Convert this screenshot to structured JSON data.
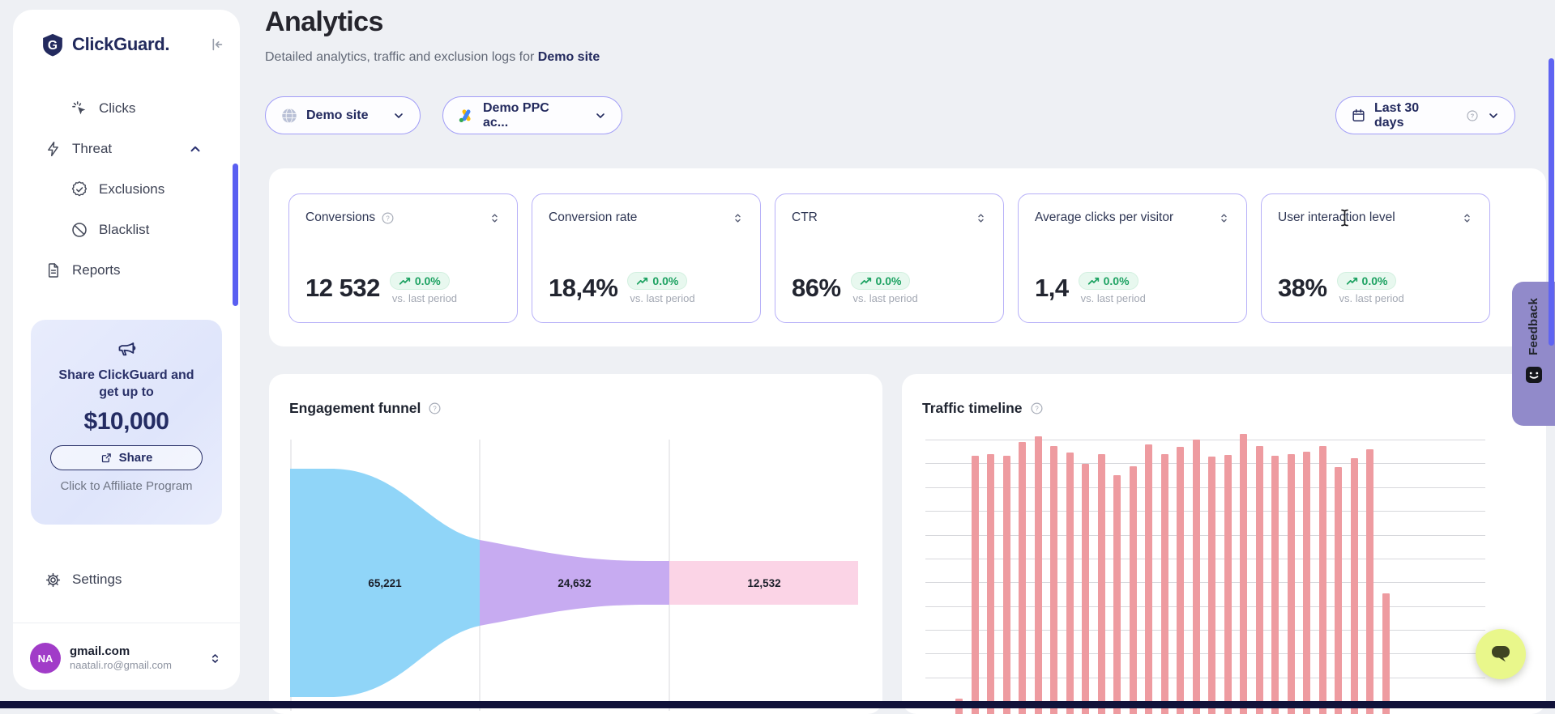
{
  "brand": {
    "name": "ClickGuard."
  },
  "sidebar": {
    "nav": [
      {
        "label": "Clicks",
        "icon": "cursor-click",
        "indent": true,
        "expanded": false
      },
      {
        "label": "Threat",
        "icon": "lightning",
        "indent": false,
        "expanded": true
      },
      {
        "label": "Exclusions",
        "icon": "badge-check",
        "indent": true,
        "expanded": false
      },
      {
        "label": "Blacklist",
        "icon": "ban",
        "indent": true,
        "expanded": false
      },
      {
        "label": "Reports",
        "icon": "document",
        "indent": false,
        "expanded": false
      }
    ],
    "promo": {
      "line1": "Share ClickGuard and",
      "line2": "get up to",
      "amount": "$10,000",
      "share_button": "Share",
      "caption": "Click to Affiliate Program"
    },
    "settings_label": "Settings",
    "account": {
      "initials": "NA",
      "name": "gmail.com",
      "email": "naatali.ro@gmail.com"
    }
  },
  "header": {
    "title": "Analytics",
    "subtitle_prefix": "Detailed analytics, traffic and exclusion logs for ",
    "subtitle_target": "Demo site"
  },
  "filters": {
    "site_label": "Demo site",
    "ppc_label": "Demo PPC ac...",
    "range_label": "Last 30 days"
  },
  "kpis": [
    {
      "label": "Conversions",
      "has_help": true,
      "value": "12 532",
      "delta": "0.0%",
      "caption": "vs. last period"
    },
    {
      "label": "Conversion rate",
      "has_help": false,
      "value": "18,4%",
      "delta": "0.0%",
      "caption": "vs. last period"
    },
    {
      "label": "CTR",
      "has_help": false,
      "value": "86%",
      "delta": "0.0%",
      "caption": "vs. last period"
    },
    {
      "label": "Average clicks per visitor",
      "has_help": false,
      "value": "1,4",
      "delta": "0.0%",
      "caption": "vs. last period"
    },
    {
      "label": "User interaction level",
      "has_help": false,
      "value": "38%",
      "delta": "0.0%",
      "caption": "vs. last period"
    }
  ],
  "feedback_tab": {
    "label": "Feedback"
  },
  "chart_data": [
    {
      "type": "area",
      "subtype": "funnel",
      "title": "Engagement funnel",
      "legend": false,
      "axis_labels_visible": false,
      "stages": [
        {
          "value": 65221,
          "label": "65,221",
          "color": "#90d5f8"
        },
        {
          "value": 24632,
          "label": "24,632",
          "color": "#c7abf1"
        },
        {
          "value": 12532,
          "label": "12,532",
          "color": "#fbd4e6"
        }
      ]
    },
    {
      "type": "bar",
      "title": "Traffic timeline",
      "bar_color": "#ee9ba0",
      "grid": "horizontal",
      "axis_labels_visible": false,
      "x_period": "Last 30 days (daily)",
      "values_relative_pct": [
        45,
        95.5,
        95.8,
        95.5,
        98.3,
        99.5,
        97.5,
        96.1,
        93.8,
        95.8,
        91.4,
        93.3,
        97.8,
        95.8,
        97.3,
        98.8,
        95.3,
        95.6,
        100,
        97.5,
        95.5,
        95.8,
        96.3,
        97.5,
        93.1,
        95,
        96.8,
        66.8
      ]
    }
  ],
  "colors": {
    "accent": "#5f64f2",
    "pill_border": "#a19df7",
    "kpi_border": "#b7b0f8",
    "positive": "#1da262",
    "positive_bg": "#e8f8ef",
    "navy": "#232a5e",
    "bar": "#ee9ba0",
    "funnel_blue": "#90d5f8",
    "funnel_purple": "#c7abf1",
    "funnel_pink": "#fbd4e6",
    "feedback_bg": "#918aca",
    "chat_bg": "#e9f78b",
    "avatar": "#a13cc8",
    "bottom_bar": "#11123a"
  }
}
